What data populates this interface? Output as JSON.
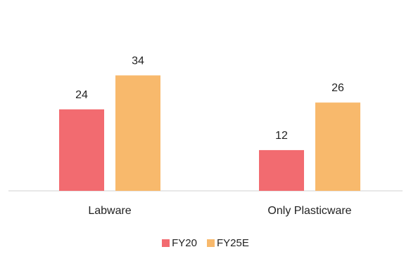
{
  "chart_data": {
    "type": "bar",
    "categories": [
      "Labware",
      "Only Plasticware"
    ],
    "series": [
      {
        "name": "FY20",
        "values": [
          24,
          12
        ],
        "color": "#F26B70"
      },
      {
        "name": "FY25E",
        "values": [
          34,
          26
        ],
        "color": "#F8B96C"
      }
    ],
    "data_labels": true,
    "legend_position": "bottom",
    "grid": false,
    "ylim": [
      0,
      38
    ]
  }
}
